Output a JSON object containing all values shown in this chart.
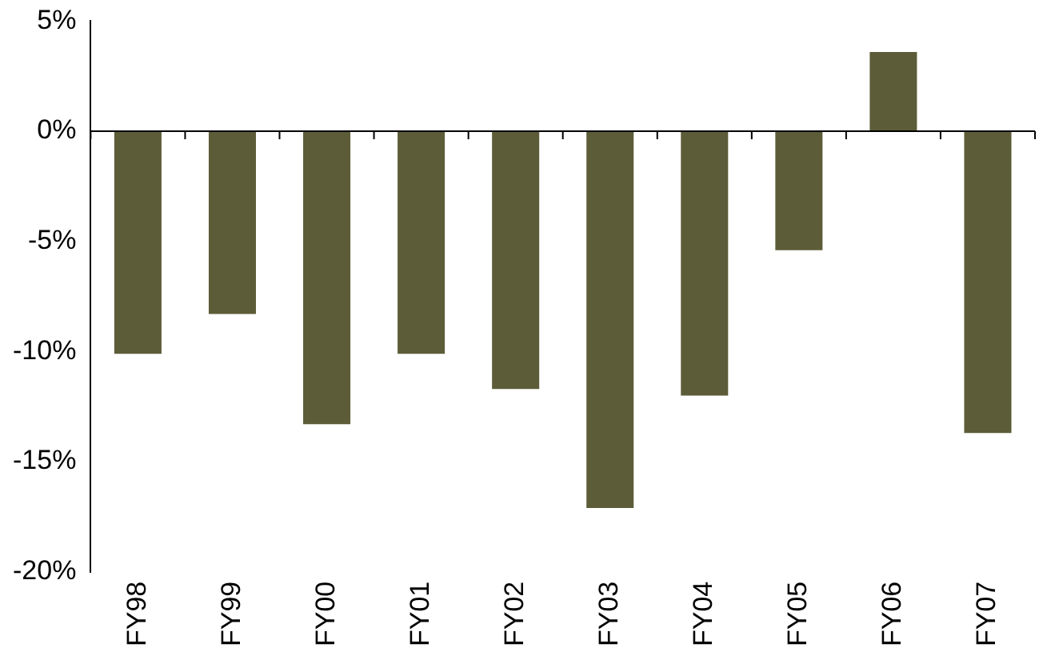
{
  "chart_data": {
    "type": "bar",
    "categories": [
      "FY98",
      "FY99",
      "FY00",
      "FY01",
      "FY02",
      "FY03",
      "FY04",
      "FY05",
      "FY06",
      "FY07"
    ],
    "values": [
      -10.1,
      -8.3,
      -13.3,
      -10.1,
      -11.7,
      -17.1,
      -12.0,
      -5.4,
      3.6,
      -13.7
    ],
    "color": "#5c5c38",
    "ylim": [
      -20,
      5
    ],
    "yticks": [
      {
        "value": -20,
        "label": "-20%"
      },
      {
        "value": -15,
        "label": "-15%"
      },
      {
        "value": -10,
        "label": "-10%"
      },
      {
        "value": -5,
        "label": "-5%"
      },
      {
        "value": 0,
        "label": "0%"
      },
      {
        "value": 5,
        "label": "5%"
      }
    ],
    "ref_lines": [
      {
        "axis": "y",
        "value": 0,
        "color": "#000000"
      }
    ],
    "grid": false
  }
}
